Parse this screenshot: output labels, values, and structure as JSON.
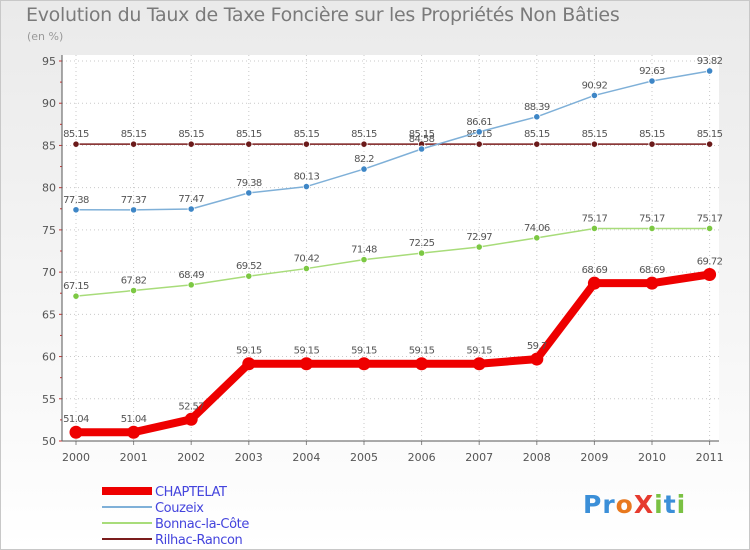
{
  "title": "Evolution du Taux de Taxe Foncière sur les Propriétés Non Bâties",
  "subtitle": "(en %)",
  "logo": {
    "text": "ProXiti",
    "letters": [
      {
        "ch": "P",
        "color": "#3b8fd8"
      },
      {
        "ch": "r",
        "color": "#3b8fd8"
      },
      {
        "ch": "o",
        "color": "#e8781e"
      },
      {
        "ch": "X",
        "color": "#e63a2e"
      },
      {
        "ch": "i",
        "color": "#7ac143"
      },
      {
        "ch": "t",
        "color": "#3b8fd8"
      },
      {
        "ch": "i",
        "color": "#7ac143"
      }
    ]
  },
  "chart_data": {
    "type": "line",
    "title": "Evolution du Taux de Taxe Foncière sur les Propriétés Non Bâties",
    "ylabel": "(en %)",
    "xlabel": "",
    "x": [
      "2000",
      "2001",
      "2002",
      "2003",
      "2004",
      "2005",
      "2006",
      "2007",
      "2008",
      "2009",
      "2010",
      "2011"
    ],
    "ylim": [
      50,
      95
    ],
    "yticks": [
      50,
      55,
      60,
      65,
      70,
      75,
      80,
      85,
      90,
      95
    ],
    "grid": true,
    "legend_position": "bottom-left",
    "series": [
      {
        "name": "Rilhac-Rancon",
        "color": "#7a1c1c",
        "marker": "#6b1a1a",
        "values": [
          85.15,
          85.15,
          85.15,
          85.15,
          85.15,
          85.15,
          85.15,
          85.15,
          85.15,
          85.15,
          85.15,
          85.15
        ],
        "labels": [
          "85.15",
          "85.15",
          "85.15",
          "85.15",
          "85.15",
          "85.15",
          "85.15",
          "85.15",
          "85.15",
          "85.15",
          "85.15",
          "85.15"
        ]
      },
      {
        "name": "Bonnac-la-Côte",
        "color": "#a8dc7a",
        "marker": "#7cc843",
        "values": [
          67.15,
          67.82,
          68.49,
          69.52,
          70.42,
          71.48,
          72.25,
          72.97,
          74.06,
          75.17,
          75.17,
          75.17
        ],
        "labels": [
          "67.15",
          "67.82",
          "68.49",
          "69.52",
          "70.42",
          "71.48",
          "72.25",
          "72.97",
          "74.06",
          "75.17",
          "75.17",
          "75.17"
        ]
      },
      {
        "name": "Couzeix",
        "color": "#7fb0d8",
        "marker": "#3e86c6",
        "values": [
          77.38,
          77.37,
          77.47,
          79.38,
          80.13,
          82.2,
          84.58,
          86.61,
          88.39,
          90.92,
          92.63,
          93.82
        ],
        "labels": [
          "77.38",
          "77.37",
          "77.47",
          "79.38",
          "80.13",
          "82.2",
          "84.58",
          "86.61",
          "88.39",
          "90.92",
          "92.63",
          "93.82"
        ]
      },
      {
        "name": "CHAPTELAT",
        "color": "#ee0000",
        "marker": "#ee0000",
        "values": [
          51.04,
          51.04,
          52.57,
          59.15,
          59.15,
          59.15,
          59.15,
          59.15,
          59.7,
          68.69,
          68.69,
          69.72
        ],
        "labels": [
          "51.04",
          "51.04",
          "52.57",
          "59.15",
          "59.15",
          "59.15",
          "59.15",
          "59.15",
          "59.7",
          "68.69",
          "68.69",
          "69.72"
        ]
      }
    ],
    "legend": [
      "CHAPTELAT",
      "Couzeix",
      "Bonnac-la-Côte",
      "Rilhac-Rancon"
    ]
  }
}
